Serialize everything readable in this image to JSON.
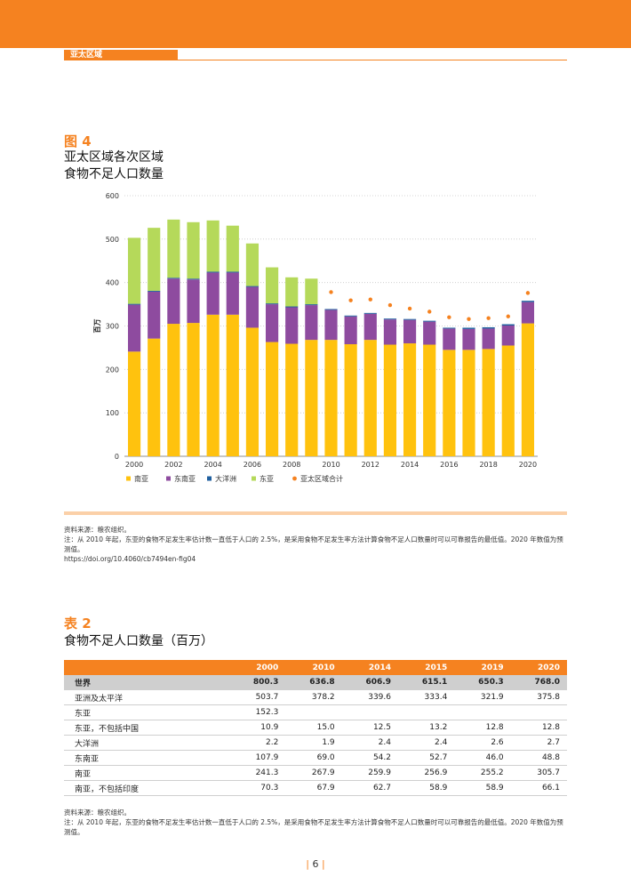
{
  "header": {
    "section": "亚太区域"
  },
  "figure": {
    "label": "图 4",
    "title": "亚太区域各次区域\n食物不足人口数量"
  },
  "chart_data": {
    "type": "bar",
    "stacked": true,
    "ylabel": "百万",
    "xlabel": "",
    "ylim": [
      0,
      600
    ],
    "yticks": [
      0,
      100,
      200,
      300,
      400,
      500,
      600
    ],
    "xtick_labels": [
      "2000",
      "2002",
      "2004",
      "2006",
      "2008",
      "2010",
      "2012",
      "2014",
      "2016",
      "2018",
      "2020"
    ],
    "categories": [
      "2000",
      "2001",
      "2002",
      "2003",
      "2004",
      "2005",
      "2006",
      "2007",
      "2008",
      "2009",
      "2010",
      "2011",
      "2012",
      "2013",
      "2014",
      "2015",
      "2016",
      "2017",
      "2018",
      "2019",
      "2020"
    ],
    "series": [
      {
        "name": "南亚",
        "color": "#ffc20e",
        "values": [
          241,
          271,
          305,
          307,
          326,
          326,
          296,
          263,
          259,
          268,
          268,
          258,
          268,
          257,
          260,
          257,
          245,
          245,
          247,
          255,
          306
        ]
      },
      {
        "name": "东南亚",
        "color": "#8e4b9f",
        "values": [
          108,
          108,
          104,
          100,
          97,
          97,
          94,
          87,
          84,
          80,
          69,
          64,
          60,
          58,
          54,
          53,
          49,
          48,
          47,
          46,
          49
        ]
      },
      {
        "name": "大洋洲",
        "color": "#1f5f9f",
        "values": [
          2,
          2,
          2,
          2,
          2,
          2,
          2,
          2,
          2,
          2,
          2,
          2,
          2,
          2,
          2,
          2,
          2,
          3,
          3,
          3,
          3
        ]
      },
      {
        "name": "东亚",
        "color": "#b5d95a",
        "values": [
          152,
          145,
          134,
          130,
          118,
          106,
          98,
          83,
          67,
          59,
          0,
          0,
          0,
          0,
          0,
          0,
          0,
          0,
          0,
          0,
          0
        ]
      },
      {
        "name": "亚太区域合计",
        "color": "#f58220",
        "type": "point",
        "values": [
          null,
          null,
          null,
          null,
          null,
          null,
          null,
          null,
          null,
          null,
          378,
          359,
          361,
          348,
          340,
          333,
          320,
          316,
          318,
          322,
          376
        ]
      }
    ],
    "legend_position": "bottom",
    "grid": "horizontal-dotted"
  },
  "figure_notes": {
    "source": "资料来源：粮农组织。",
    "note": "注：从 2010 年起，东亚的食物不足发生率估计数一直低于人口的 2.5%，是采用食物不足发生率方法计算食物不足人口数量时可以可靠报告的最低值。2020 年数值为预测值。",
    "doi": "https://doi.org/10.4060/cb7494en-fig04"
  },
  "table": {
    "label": "表 2",
    "title": "食物不足人口数量（百万）",
    "columns": [
      "",
      "2000",
      "2010",
      "2014",
      "2015",
      "2019",
      "2020"
    ],
    "rows": [
      [
        "世界",
        "800.3",
        "636.8",
        "606.9",
        "615.1",
        "650.3",
        "768.0"
      ],
      [
        "亚洲及太平洋",
        "503.7",
        "378.2",
        "339.6",
        "333.4",
        "321.9",
        "375.8"
      ],
      [
        "东亚",
        "152.3",
        "",
        "",
        "",
        "",
        ""
      ],
      [
        "东亚，不包括中国",
        "10.9",
        "15.0",
        "12.5",
        "13.2",
        "12.8",
        "12.8"
      ],
      [
        "大洋洲",
        "2.2",
        "1.9",
        "2.4",
        "2.4",
        "2.6",
        "2.7"
      ],
      [
        "东南亚",
        "107.9",
        "69.0",
        "54.2",
        "52.7",
        "46.0",
        "48.8"
      ],
      [
        "南亚",
        "241.3",
        "267.9",
        "259.9",
        "256.9",
        "255.2",
        "305.7"
      ],
      [
        "南亚，不包括印度",
        "70.3",
        "67.9",
        "62.7",
        "58.9",
        "58.9",
        "66.1"
      ]
    ]
  },
  "table_notes": {
    "source": "资料来源：粮农组织。",
    "note": "注：从 2010 年起，东亚的食物不足发生率估计数一直低于人口的 2.5%，是采用食物不足发生率方法计算食物不足人口数量时可以可靠报告的最低值。2020 年数值为预测值。"
  },
  "footer": {
    "page": "6",
    "bar_left": "|",
    "bar_right": "|"
  }
}
